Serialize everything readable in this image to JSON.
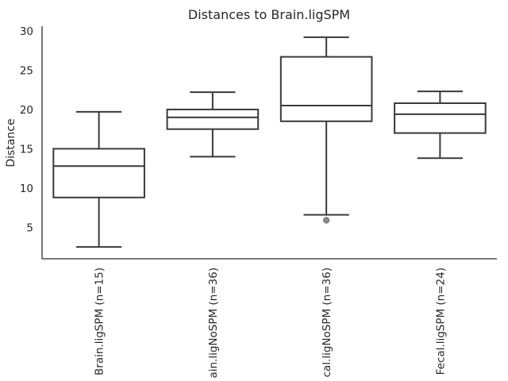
{
  "chart_data": {
    "type": "box",
    "title": "Distances to Brain.ligSPM",
    "ylabel": "Distance",
    "xlabel": "",
    "ylim": [
      1.0,
      30.6
    ],
    "yticks": [
      5,
      10,
      15,
      20,
      25,
      30
    ],
    "categories": [
      "Brain.ligSPM (n=15)",
      "ain.ligNoSPM (n=36)",
      "cal.ligNoSPM (n=36)",
      "Fecal.ligSPM (n=24)"
    ],
    "boxes": [
      {
        "whisker_low": 2.5,
        "q1": 8.8,
        "median": 12.8,
        "q3": 15.0,
        "whisker_high": 19.7,
        "outliers": []
      },
      {
        "whisker_low": 14.0,
        "q1": 17.5,
        "median": 19.0,
        "q3": 20.0,
        "whisker_high": 22.2,
        "outliers": []
      },
      {
        "whisker_low": 6.6,
        "q1": 18.5,
        "median": 20.5,
        "q3": 26.7,
        "whisker_high": 29.2,
        "outliers": [
          5.9
        ]
      },
      {
        "whisker_low": 13.8,
        "q1": 17.0,
        "median": 19.4,
        "q3": 20.8,
        "whisker_high": 22.3,
        "outliers": []
      }
    ],
    "grid": false,
    "box_color": "#ffffff",
    "line_color": "#3a3a3a",
    "outlier_color": "#8c8c8c"
  }
}
